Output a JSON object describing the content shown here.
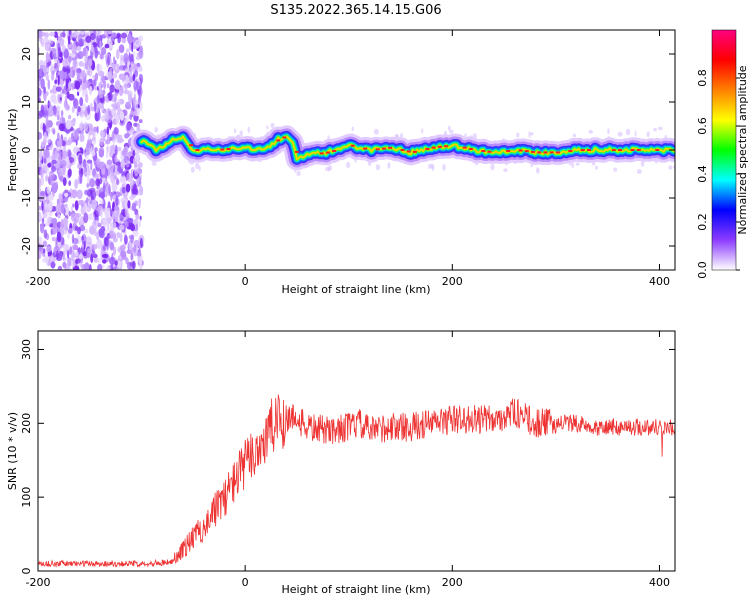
{
  "title": "S135.2022.365.14.15.G06",
  "chart_data": [
    {
      "type": "heatmap",
      "xlabel": "Height of straight line (km)",
      "ylabel": "Frequency (Hz)",
      "xlim": [
        -200,
        415
      ],
      "ylim": [
        -25,
        25
      ],
      "xticks": [
        -200,
        0,
        200,
        400
      ],
      "yticks": [
        -20,
        -10,
        0,
        10,
        20
      ],
      "noise_region_x": [
        -200,
        -100
      ],
      "ridge_x": [
        -100,
        -85,
        -70,
        -60,
        -50,
        -30,
        0,
        20,
        30,
        40,
        45,
        50,
        60,
        80,
        100,
        120,
        140,
        160,
        180,
        200,
        220,
        240,
        260,
        280,
        300,
        320,
        340,
        360,
        380,
        400,
        415
      ],
      "ridge_y": [
        2,
        0,
        2,
        2.5,
        0,
        0,
        0.5,
        0,
        2,
        3,
        2,
        -2,
        -1,
        -0.5,
        1,
        0,
        0.5,
        -0.5,
        0.5,
        1,
        0,
        -0.5,
        0,
        -0.5,
        -0.5,
        0,
        0,
        0,
        0,
        0,
        0
      ],
      "colorbar": {
        "label": "Normalized spectral amplitude",
        "range": [
          0,
          1
        ],
        "ticks": [
          "0.0",
          "0.2",
          "0.4",
          "0.6",
          "0.8"
        ],
        "colors": [
          "#ffffff",
          "#8c3cff",
          "#0000ff",
          "#00ffff",
          "#00ff00",
          "#ffff00",
          "#ff8000",
          "#ff0000",
          "#ff0080"
        ]
      }
    },
    {
      "type": "line",
      "xlabel": "Height of straight line (km)",
      "ylabel": "SNR (10 * v/v)",
      "xlim": [
        -200,
        415
      ],
      "ylim": [
        0,
        325
      ],
      "xticks": [
        -200,
        0,
        200,
        400
      ],
      "yticks": [
        0,
        100,
        200,
        300
      ],
      "color": "#ee3333",
      "x": [
        -200,
        -150,
        -100,
        -70,
        -60,
        -40,
        -20,
        0,
        20,
        30,
        45,
        60,
        80,
        100,
        110,
        120,
        140,
        160,
        180,
        200,
        220,
        240,
        260,
        280,
        300,
        320,
        340,
        360,
        380,
        400,
        415
      ],
      "y": [
        10,
        10,
        10,
        12,
        30,
        60,
        100,
        145,
        180,
        200,
        210,
        195,
        190,
        195,
        200,
        190,
        195,
        195,
        200,
        205,
        205,
        205,
        215,
        200,
        200,
        200,
        195,
        195,
        195,
        195,
        195
      ]
    }
  ]
}
